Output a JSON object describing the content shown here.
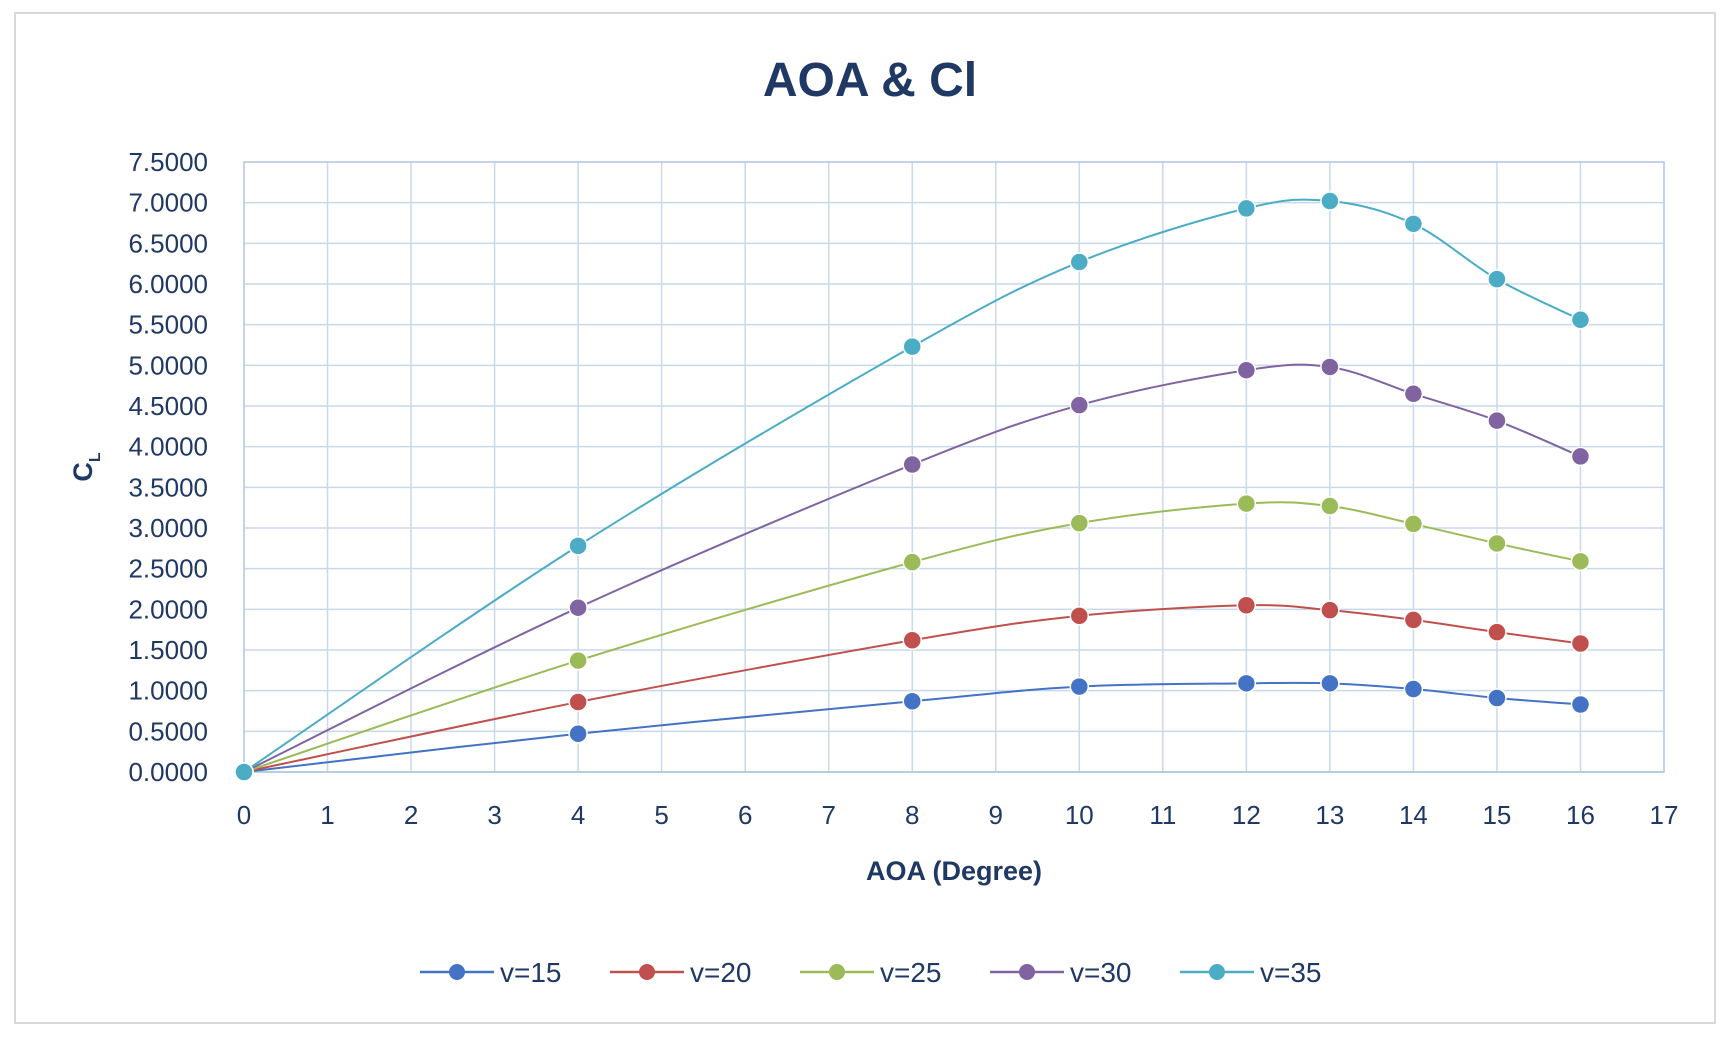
{
  "chart_data": {
    "type": "line",
    "title": "AOA & Cl",
    "xlabel": "AOA (Degree)",
    "ylabel": "CL",
    "xlim": [
      0,
      17
    ],
    "ylim": [
      0,
      7.5
    ],
    "x_ticks": [
      "0",
      "1",
      "2",
      "3",
      "4",
      "5",
      "6",
      "7",
      "8",
      "9",
      "10",
      "11",
      "12",
      "13",
      "14",
      "15",
      "16",
      "17"
    ],
    "y_ticks": [
      "0.0000",
      "0.5000",
      "1.0000",
      "1.5000",
      "2.0000",
      "2.5000",
      "3.0000",
      "3.5000",
      "4.0000",
      "4.5000",
      "5.0000",
      "5.5000",
      "6.0000",
      "6.5000",
      "7.0000",
      "7.5000"
    ],
    "grid": true,
    "legend_position": "bottom",
    "x": [
      0,
      4,
      8,
      10,
      12,
      13,
      14,
      15,
      16
    ],
    "series": [
      {
        "name": "v=15",
        "color": "#4472c4",
        "values": [
          0.0,
          0.47,
          0.87,
          1.05,
          1.09,
          1.09,
          1.02,
          0.91,
          0.83
        ]
      },
      {
        "name": "v=20",
        "color": "#c0504d",
        "values": [
          0.0,
          0.86,
          1.62,
          1.92,
          2.05,
          1.99,
          1.87,
          1.72,
          1.58
        ]
      },
      {
        "name": "v=25",
        "color": "#9bbb59",
        "values": [
          0.0,
          1.37,
          2.58,
          3.06,
          3.3,
          3.27,
          3.05,
          2.81,
          2.59
        ]
      },
      {
        "name": "v=30",
        "color": "#8064a2",
        "values": [
          0.0,
          2.02,
          3.78,
          4.51,
          4.94,
          4.98,
          4.65,
          4.32,
          3.88
        ]
      },
      {
        "name": "v=35",
        "color": "#4bacc6",
        "values": [
          0.0,
          2.78,
          5.23,
          6.27,
          6.93,
          7.02,
          6.74,
          6.06,
          5.56
        ]
      }
    ]
  }
}
